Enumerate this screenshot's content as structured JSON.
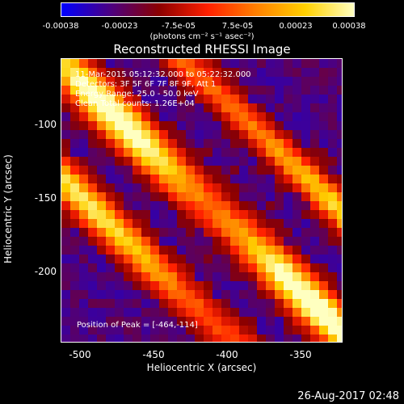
{
  "colorbar": {
    "ticks": [
      "-0.00038",
      "-0.00023",
      "-7.5e-05",
      "7.5e-05",
      "0.00023",
      "0.00038"
    ],
    "units": "(photons cm⁻² s⁻¹ asec⁻²)",
    "range": [
      -0.00038,
      0.00038
    ],
    "colors": [
      "#0000ff",
      "#4b0082",
      "#8b0000",
      "#ff2000",
      "#ff8000",
      "#ffd000",
      "#ffffc0"
    ]
  },
  "title": "Reconstructed RHESSI Image",
  "info": {
    "time": "11-Mar-2015 05:12:32.000 to 05:22:32.000",
    "detectors": "Detectors: 3F 5F 6F 7F 8F 9F, Att 1",
    "energy": "Energy Range: 25.0 - 50.0 keV",
    "method": "Clean     Total counts: 1.26E+04"
  },
  "peak": "Position of Peak = [-464,-114]",
  "axes": {
    "xlabel": "Heliocentric X (arcsec)",
    "ylabel": "Heliocentric Y (arcsec)",
    "xticks": [
      "-500",
      "-450",
      "-400",
      "-350"
    ],
    "xtick_values": [
      -500,
      -450,
      -400,
      -350
    ],
    "yticks": [
      "-100",
      "-150",
      "-200"
    ],
    "ytick_values": [
      -100,
      -150,
      -200
    ],
    "xlim": [
      -512,
      -321
    ],
    "ylim": [
      -246,
      -60
    ]
  },
  "timestamp": "26-Aug-2017 02:48"
}
